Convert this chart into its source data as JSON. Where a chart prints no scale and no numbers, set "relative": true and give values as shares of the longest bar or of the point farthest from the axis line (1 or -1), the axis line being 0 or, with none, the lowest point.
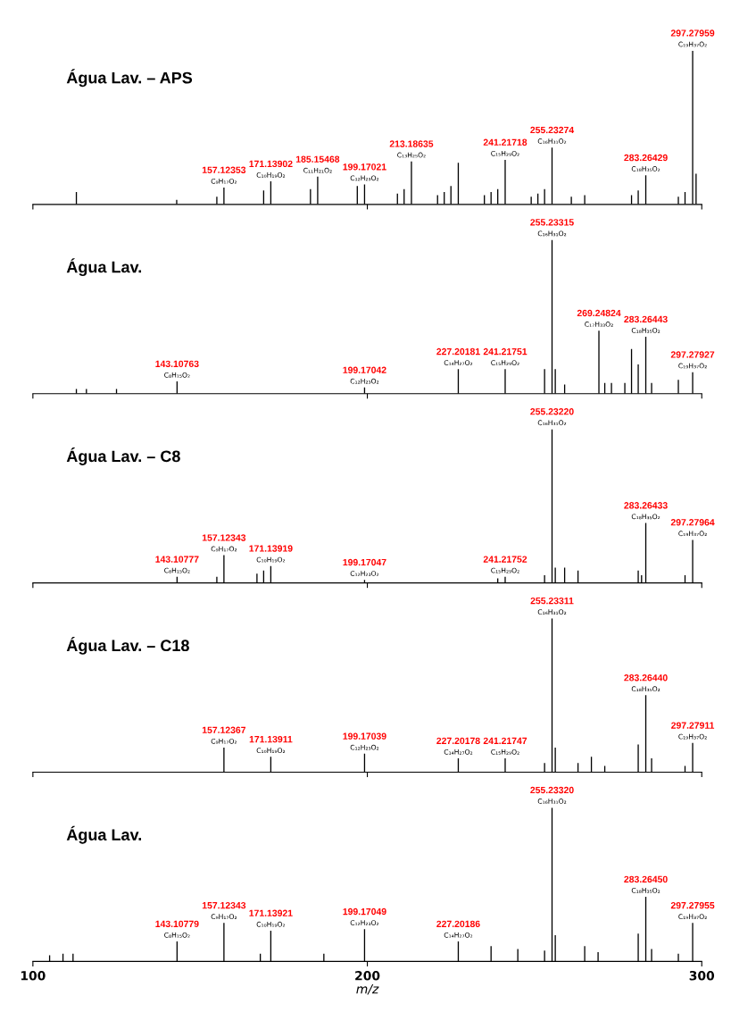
{
  "chart_data": [
    {
      "type": "bar",
      "title": "Água Lav. – APS",
      "relative": true,
      "color": "#000000",
      "xlim": [
        100,
        300
      ],
      "xticks": [
        100,
        200,
        300
      ],
      "tick_labels": false,
      "x": [
        113,
        143,
        155,
        157.12353,
        169,
        171.13902,
        183,
        185.15468,
        197,
        199.17021,
        209,
        211,
        213.18635,
        221,
        223,
        225,
        227.2,
        235,
        237,
        239,
        241.21718,
        249,
        251,
        253,
        255.23274,
        261,
        265,
        279,
        281,
        283.26429,
        293,
        295,
        297.27959,
        298.3
      ],
      "values": [
        0.08,
        0.03,
        0.05,
        0.11,
        0.09,
        0.15,
        0.1,
        0.18,
        0.12,
        0.13,
        0.07,
        0.1,
        0.28,
        0.06,
        0.08,
        0.12,
        0.27,
        0.06,
        0.08,
        0.1,
        0.29,
        0.05,
        0.07,
        0.1,
        0.37,
        0.05,
        0.06,
        0.06,
        0.09,
        0.19,
        0.05,
        0.08,
        1.0,
        0.2
      ],
      "annotations": [
        {
          "text": "157.12353",
          "x": 157.12353,
          "y": 0.11
        },
        {
          "text": "C₉H₁₇O₂",
          "x": 157.12353,
          "y": 0.11
        },
        {
          "text": "171.13902",
          "x": 171.13902,
          "y": 0.15
        },
        {
          "text": "C₁₀H₁₉O₂",
          "x": 171.13902,
          "y": 0.15
        },
        {
          "text": "185.15468",
          "x": 185.15468,
          "y": 0.18
        },
        {
          "text": "C₁₁H₂₁O₂",
          "x": 185.15468,
          "y": 0.18
        },
        {
          "text": "199.17021",
          "x": 199.17021,
          "y": 0.13
        },
        {
          "text": "C₁₂H₂₃O₂",
          "x": 199.17021,
          "y": 0.13
        },
        {
          "text": "213.18635",
          "x": 213.18635,
          "y": 0.28
        },
        {
          "text": "C₁₃H₂₅O₂",
          "x": 213.18635,
          "y": 0.28
        },
        {
          "text": "241.21718",
          "x": 241.21718,
          "y": 0.29
        },
        {
          "text": "C₁₅H₂₉O₂",
          "x": 241.21718,
          "y": 0.29
        },
        {
          "text": "255.23274",
          "x": 255.23274,
          "y": 0.37
        },
        {
          "text": "C₁₆H₃₁O₂",
          "x": 255.23274,
          "y": 0.37
        },
        {
          "text": "283.26429",
          "x": 283.26429,
          "y": 0.19
        },
        {
          "text": "C₁₈H₃₅O₂",
          "x": 283.26429,
          "y": 0.19
        },
        {
          "text": "297.27959",
          "x": 297.27959,
          "y": 1.0
        },
        {
          "text": "C₁₉H₃₇O₂",
          "x": 297.27959,
          "y": 1.0
        }
      ]
    },
    {
      "type": "bar",
      "title": "Água Lav.",
      "relative": true,
      "color": "#000000",
      "xlim": [
        100,
        300
      ],
      "xticks": [
        100,
        200,
        300
      ],
      "tick_labels": false,
      "x": [
        113,
        116,
        125,
        143.10763,
        199.17042,
        227.20181,
        241.21751,
        253,
        255.23315,
        256.2,
        259,
        269.24824,
        271,
        273,
        277,
        279,
        281,
        283.26443,
        285,
        293,
        297.27927
      ],
      "values": [
        0.03,
        0.03,
        0.03,
        0.08,
        0.04,
        0.16,
        0.16,
        0.16,
        1.0,
        0.16,
        0.06,
        0.41,
        0.07,
        0.07,
        0.07,
        0.29,
        0.19,
        0.37,
        0.07,
        0.09,
        0.14
      ],
      "annotations": [
        {
          "text": "143.10763",
          "x": 143.10763,
          "y": 0.08
        },
        {
          "text": "C₈H₁₅O₂",
          "x": 143.10763,
          "y": 0.08
        },
        {
          "text": "199.17042",
          "x": 199.17042,
          "y": 0.04
        },
        {
          "text": "C₁₂H₂₃O₂",
          "x": 199.17042,
          "y": 0.04
        },
        {
          "text": "227.20181",
          "x": 227.20181,
          "y": 0.16
        },
        {
          "text": "C₁₄H₂₇O₂",
          "x": 227.20181,
          "y": 0.16
        },
        {
          "text": "241.21751",
          "x": 241.21751,
          "y": 0.16
        },
        {
          "text": "C₁₅H₂₉O₂",
          "x": 241.21751,
          "y": 0.16
        },
        {
          "text": "255.23315",
          "x": 255.23315,
          "y": 1.0
        },
        {
          "text": "C₁₆H₃₁O₂",
          "x": 255.23315,
          "y": 1.0
        },
        {
          "text": "269.24824",
          "x": 269.24824,
          "y": 0.41
        },
        {
          "text": "C₁₇H₃₃O₂",
          "x": 269.24824,
          "y": 0.41
        },
        {
          "text": "283.26443",
          "x": 283.26443,
          "y": 0.37
        },
        {
          "text": "C₁₈H₃₅O₂",
          "x": 283.26443,
          "y": 0.37
        },
        {
          "text": "297.27927",
          "x": 297.27927,
          "y": 0.14
        },
        {
          "text": "C₁₉H₃₇O₂",
          "x": 297.27927,
          "y": 0.14
        }
      ]
    },
    {
      "type": "bar",
      "title": "Água Lav. – C8",
      "relative": true,
      "color": "#000000",
      "xlim": [
        100,
        300
      ],
      "xticks": [
        100,
        200,
        300
      ],
      "tick_labels": false,
      "x": [
        143.10777,
        155,
        157.12343,
        167,
        169,
        171.13919,
        199.17047,
        239,
        241.21752,
        253,
        255.2322,
        256.2,
        259,
        263,
        281,
        282,
        283.26433,
        295,
        297.27964
      ],
      "values": [
        0.04,
        0.04,
        0.18,
        0.06,
        0.08,
        0.11,
        0.02,
        0.03,
        0.04,
        0.05,
        1.0,
        0.1,
        0.1,
        0.08,
        0.08,
        0.05,
        0.39,
        0.05,
        0.28
      ],
      "annotations": [
        {
          "text": "143.10777",
          "x": 143.10777,
          "y": 0.04
        },
        {
          "text": "C₈H₁₅O₂",
          "x": 143.10777,
          "y": 0.04
        },
        {
          "text": "157.12343",
          "x": 157.12343,
          "y": 0.18
        },
        {
          "text": "C₉H₁₇O₂",
          "x": 157.12343,
          "y": 0.18
        },
        {
          "text": "171.13919",
          "x": 171.13919,
          "y": 0.11
        },
        {
          "text": "C₁₀H₁₉O₂",
          "x": 171.13919,
          "y": 0.11
        },
        {
          "text": "199.17047",
          "x": 199.17047,
          "y": 0.02
        },
        {
          "text": "C₁₂H₂₃O₂",
          "x": 199.17047,
          "y": 0.02
        },
        {
          "text": "241.21752",
          "x": 241.21752,
          "y": 0.04
        },
        {
          "text": "C₁₅H₂₉O₂",
          "x": 241.21752,
          "y": 0.04
        },
        {
          "text": "255.23220",
          "x": 255.2322,
          "y": 1.0
        },
        {
          "text": "C₁₆H₃₁O₂",
          "x": 255.2322,
          "y": 1.0
        },
        {
          "text": "283.26433",
          "x": 283.26433,
          "y": 0.39
        },
        {
          "text": "C₁₈H₃₅O₂",
          "x": 283.26433,
          "y": 0.39
        },
        {
          "text": "297.27964",
          "x": 297.27964,
          "y": 0.28
        },
        {
          "text": "C₁₉H₃₇O₂",
          "x": 297.27964,
          "y": 0.28
        }
      ]
    },
    {
      "type": "bar",
      "title": "Água Lav. – C18",
      "relative": true,
      "color": "#000000",
      "xlim": [
        100,
        300
      ],
      "xticks": [
        100,
        200,
        300
      ],
      "tick_labels": false,
      "x": [
        157.12367,
        171.13911,
        199.17039,
        227.20178,
        241.21747,
        253,
        255.23311,
        256.2,
        263,
        267,
        271,
        281,
        283.2644,
        285,
        295,
        297.27911
      ],
      "values": [
        0.16,
        0.1,
        0.12,
        0.09,
        0.09,
        0.06,
        1.0,
        0.16,
        0.06,
        0.1,
        0.04,
        0.18,
        0.5,
        0.09,
        0.04,
        0.19
      ],
      "annotations": [
        {
          "text": "157.12367",
          "x": 157.12367,
          "y": 0.16
        },
        {
          "text": "C₉H₁₇O₂",
          "x": 157.12367,
          "y": 0.16
        },
        {
          "text": "171.13911",
          "x": 171.13911,
          "y": 0.1
        },
        {
          "text": "C₁₀H₁₉O₂",
          "x": 171.13911,
          "y": 0.1
        },
        {
          "text": "199.17039",
          "x": 199.17039,
          "y": 0.12
        },
        {
          "text": "C₁₂H₂₃O₂",
          "x": 199.17039,
          "y": 0.12
        },
        {
          "text": "227.20178",
          "x": 227.20178,
          "y": 0.09
        },
        {
          "text": "C₁₄H₂₇O₂",
          "x": 227.20178,
          "y": 0.09
        },
        {
          "text": "241.21747",
          "x": 241.21747,
          "y": 0.09
        },
        {
          "text": "C₁₅H₂₉O₂",
          "x": 241.21747,
          "y": 0.09
        },
        {
          "text": "255.23311",
          "x": 255.23311,
          "y": 1.0
        },
        {
          "text": "C₁₆H₃₁O₂",
          "x": 255.23311,
          "y": 1.0
        },
        {
          "text": "283.26440",
          "x": 283.2644,
          "y": 0.5
        },
        {
          "text": "C₁₈H₃₅O₂",
          "x": 283.2644,
          "y": 0.5
        },
        {
          "text": "297.27911",
          "x": 297.27911,
          "y": 0.19
        },
        {
          "text": "C₁₉H₃₇O₂",
          "x": 297.27911,
          "y": 0.19
        }
      ]
    },
    {
      "type": "bar",
      "title": "Água Lav.",
      "relative": true,
      "color": "#000000",
      "xlim": [
        100,
        300
      ],
      "xticks": [
        100,
        200,
        300
      ],
      "tick_labels": "x",
      "xlabel": "m/z",
      "x": [
        105,
        109,
        112,
        143.10779,
        157.12343,
        168,
        171.13921,
        187,
        199.17049,
        227.20186,
        237,
        245,
        253,
        255.2332,
        256.2,
        265,
        269,
        281,
        283.2645,
        285,
        293,
        297.27955
      ],
      "values": [
        0.04,
        0.05,
        0.05,
        0.13,
        0.25,
        0.05,
        0.2,
        0.05,
        0.21,
        0.13,
        0.1,
        0.08,
        0.07,
        1.0,
        0.17,
        0.1,
        0.06,
        0.18,
        0.42,
        0.08,
        0.05,
        0.25
      ],
      "annotations": [
        {
          "text": "143.10779",
          "x": 143.10779,
          "y": 0.13
        },
        {
          "text": "C₈H₁₅O₂",
          "x": 143.10779,
          "y": 0.13
        },
        {
          "text": "157.12343",
          "x": 157.12343,
          "y": 0.25
        },
        {
          "text": "C₉H₁₇O₂",
          "x": 157.12343,
          "y": 0.25
        },
        {
          "text": "171.13921",
          "x": 171.13921,
          "y": 0.2
        },
        {
          "text": "C₁₀H₁₉O₂",
          "x": 171.13921,
          "y": 0.2
        },
        {
          "text": "199.17049",
          "x": 199.17049,
          "y": 0.21
        },
        {
          "text": "C₁₂H₂₃O₂",
          "x": 199.17049,
          "y": 0.21
        },
        {
          "text": "227.20186",
          "x": 227.20186,
          "y": 0.13
        },
        {
          "text": "C₁₄H₂₇O₂",
          "x": 227.20186,
          "y": 0.13
        },
        {
          "text": "255.23320",
          "x": 255.2332,
          "y": 1.0
        },
        {
          "text": "C₁₆H₃₁O₂",
          "x": 255.2332,
          "y": 1.0
        },
        {
          "text": "283.26450",
          "x": 283.2645,
          "y": 0.42
        },
        {
          "text": "C₁₈H₃₅O₂",
          "x": 283.2645,
          "y": 0.42
        },
        {
          "text": "297.27955",
          "x": 297.27955,
          "y": 0.25
        },
        {
          "text": "C₁₉H₃₇O₂",
          "x": 297.27955,
          "y": 0.25
        }
      ]
    }
  ]
}
